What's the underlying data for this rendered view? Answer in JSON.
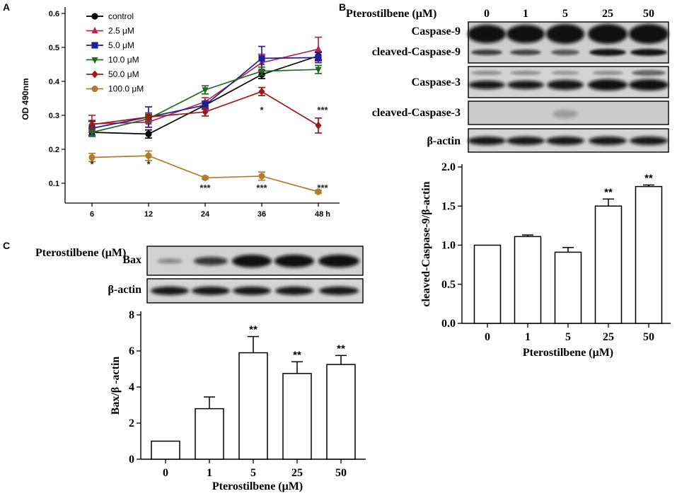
{
  "panels": {
    "a": "A",
    "b": "B",
    "c": "C"
  },
  "chart_data": [
    {
      "id": "A",
      "type": "line",
      "title": "",
      "xlabel": "",
      "ylabel": "OD 490nm",
      "categories": [
        "6",
        "12",
        "24",
        "36",
        "48 h"
      ],
      "ylim": [
        0.05,
        0.6
      ],
      "yticks": [
        "0.1",
        "0.2",
        "0.3",
        "0.4",
        "0.5",
        "0.6"
      ],
      "ytick_values": [
        0.1,
        0.2,
        0.3,
        0.4,
        0.5,
        0.6
      ],
      "legend_position": "top-left",
      "series": [
        {
          "name": "control",
          "color": "#000000",
          "marker": "circle",
          "values": [
            0.25,
            0.245,
            0.33,
            0.42,
            0.475
          ],
          "errors": [
            0.012,
            0.012,
            0.012,
            0.012,
            0.012
          ]
        },
        {
          "name": "2.5 μM",
          "color": "#b5294f",
          "marker": "triangle-up",
          "values": [
            0.275,
            0.28,
            0.34,
            0.455,
            0.495
          ],
          "errors": [
            0.025,
            0.015,
            0.012,
            0.025,
            0.035
          ]
        },
        {
          "name": "5.0 μM",
          "color": "#1f1f9e",
          "marker": "square",
          "values": [
            0.262,
            0.295,
            0.33,
            0.468,
            0.47
          ],
          "errors": [
            0.02,
            0.03,
            0.012,
            0.035,
            0.015
          ]
        },
        {
          "name": "10.0 μM",
          "color": "#1f6b1f",
          "marker": "triangle-down",
          "values": [
            0.25,
            0.29,
            0.375,
            0.43,
            0.435
          ],
          "errors": [
            0.012,
            0.012,
            0.012,
            0.012,
            0.012
          ]
        },
        {
          "name": "50.0 μM",
          "color": "#9e1a1a",
          "marker": "diamond",
          "values": [
            0.273,
            0.295,
            0.31,
            0.37,
            0.27
          ],
          "errors": [
            0.012,
            0.012,
            0.012,
            0.012,
            0.022
          ]
        },
        {
          "name": "100.0 μM",
          "color": "#b07d2c",
          "marker": "circle",
          "values": [
            0.176,
            0.181,
            0.116,
            0.121,
            0.075
          ],
          "errors": [
            0.012,
            0.014,
            0.004,
            0.012,
            0.004
          ]
        }
      ],
      "annotations": [
        {
          "text": "*",
          "x": "6",
          "y": 0.155
        },
        {
          "text": "*",
          "x": "12",
          "y": 0.155
        },
        {
          "text": "***",
          "x": "24",
          "y": 0.085
        },
        {
          "text": "***",
          "x": "36",
          "y": 0.085
        },
        {
          "text": "***",
          "x": "48 h",
          "y": 0.085
        },
        {
          "text": "*",
          "x": "36",
          "y": 0.315
        },
        {
          "text": "***",
          "x": "48 h",
          "y": 0.315
        }
      ]
    },
    {
      "id": "B",
      "type": "bar",
      "title": "",
      "xlabel": "Pterostilbene (μM)",
      "ylabel": "cleaved-Caspase-9/β-actin",
      "categories": [
        "0",
        "1",
        "5",
        "25",
        "50"
      ],
      "values": [
        1.0,
        1.11,
        0.91,
        1.5,
        1.75
      ],
      "errors": [
        0.0,
        0.02,
        0.06,
        0.09,
        0.02
      ],
      "significance": [
        "",
        "",
        "",
        "**",
        "**"
      ],
      "ylim": [
        0.0,
        2.0
      ],
      "yticks": [
        "0.0",
        "0.5",
        "1.0",
        "1.5",
        "2.0"
      ],
      "ytick_values": [
        0.0,
        0.5,
        1.0,
        1.5,
        2.0
      ]
    },
    {
      "id": "C",
      "type": "bar",
      "title": "",
      "xlabel": "Pterostilbene (μM)",
      "ylabel": "Bax/β -actin",
      "categories": [
        "0",
        "1",
        "5",
        "25",
        "50"
      ],
      "values": [
        1.0,
        2.8,
        5.9,
        4.75,
        5.25
      ],
      "errors": [
        0.0,
        0.65,
        0.9,
        0.65,
        0.5
      ],
      "significance": [
        "",
        "",
        "**",
        "**",
        "**"
      ],
      "ylim": [
        0,
        8
      ],
      "yticks": [
        "0",
        "2",
        "4",
        "6",
        "8"
      ],
      "ytick_values": [
        0,
        2,
        4,
        6,
        8
      ]
    }
  ],
  "blots": {
    "b": {
      "header_label": "Pterostilbene (μM)",
      "lanes": [
        "0",
        "1",
        "5",
        "25",
        "50"
      ],
      "labels": [
        "Caspase-9",
        "cleaved-Caspase-9",
        "Caspase-3",
        "cleaved-Caspase-3",
        "β-actin"
      ]
    },
    "c": {
      "header_label": "Pterostilbene (μM)",
      "lanes": [
        "0",
        "1",
        "5",
        "25",
        "50"
      ],
      "labels": [
        "Bax",
        "β-actin"
      ]
    }
  },
  "colors": {
    "axis": "#000000",
    "bar_fill": "#ffffff",
    "blot_bg": "#dcdcdc",
    "band": "#1a1a1a"
  }
}
